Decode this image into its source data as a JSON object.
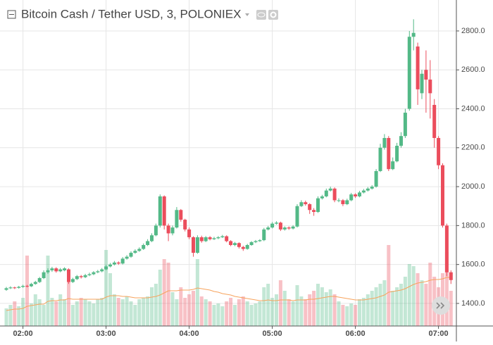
{
  "chart_data": {
    "type": "candlestick",
    "title": "Bitcoin Cash / Tether USD, 3, POLONIEX",
    "categories": [
      "01:48",
      "01:51",
      "01:54",
      "01:57",
      "02:00",
      "02:03",
      "02:06",
      "02:09",
      "02:12",
      "02:15",
      "02:18",
      "02:21",
      "02:24",
      "02:27",
      "02:30",
      "02:33",
      "02:36",
      "02:39",
      "02:42",
      "02:45",
      "02:48",
      "02:51",
      "02:54",
      "02:57",
      "03:00",
      "03:03",
      "03:06",
      "03:09",
      "03:12",
      "03:15",
      "03:18",
      "03:21",
      "03:24",
      "03:27",
      "03:30",
      "03:33",
      "03:36",
      "03:39",
      "03:42",
      "03:45",
      "03:48",
      "03:51",
      "03:54",
      "03:57",
      "04:00",
      "04:03",
      "04:06",
      "04:09",
      "04:12",
      "04:15",
      "04:18",
      "04:21",
      "04:24",
      "04:27",
      "04:30",
      "04:33",
      "04:36",
      "04:39",
      "04:42",
      "04:45",
      "04:48",
      "04:51",
      "04:54",
      "04:57",
      "05:00",
      "05:03",
      "05:06",
      "05:09",
      "05:12",
      "05:15",
      "05:18",
      "05:21",
      "05:24",
      "05:27",
      "05:30",
      "05:33",
      "05:36",
      "05:39",
      "05:42",
      "05:45",
      "05:48",
      "05:51",
      "05:54",
      "05:57",
      "06:00",
      "06:03",
      "06:06",
      "06:09",
      "06:12",
      "06:15",
      "06:18",
      "06:21",
      "06:24",
      "06:27",
      "06:30",
      "06:33",
      "06:36",
      "06:39",
      "06:42",
      "06:45",
      "06:48",
      "06:51",
      "06:54",
      "06:57",
      "07:00",
      "07:03",
      "07:06",
      "07:09"
    ],
    "open": [
      1470,
      1478,
      1482,
      1480,
      1485,
      1490,
      1488,
      1500,
      1510,
      1530,
      1560,
      1570,
      1580,
      1565,
      1570,
      1575,
      1510,
      1525,
      1540,
      1535,
      1545,
      1550,
      1560,
      1565,
      1575,
      1590,
      1600,
      1610,
      1605,
      1630,
      1640,
      1660,
      1670,
      1680,
      1700,
      1720,
      1750,
      1800,
      1950,
      1800,
      1760,
      1790,
      1880,
      1830,
      1780,
      1740,
      1660,
      1740,
      1720,
      1740,
      1730,
      1735,
      1740,
      1745,
      1720,
      1700,
      1710,
      1690,
      1680,
      1700,
      1715,
      1720,
      1725,
      1780,
      1790,
      1810,
      1815,
      1780,
      1790,
      1785,
      1795,
      1900,
      1920,
      1910,
      1880,
      1870,
      1940,
      1950,
      1980,
      1990,
      1930,
      1930,
      1910,
      1930,
      1960,
      1950,
      1970,
      1980,
      1990,
      2000,
      2080,
      2200,
      2250,
      2090,
      2130,
      2210,
      2260,
      2400,
      2770,
      2720,
      2480,
      2600,
      2550,
      2420,
      2250,
      2110,
      1800,
      1560
    ],
    "high": [
      1485,
      1488,
      1486,
      1490,
      1496,
      1495,
      1506,
      1516,
      1536,
      1570,
      1580,
      1588,
      1586,
      1582,
      1586,
      1580,
      1532,
      1546,
      1546,
      1552,
      1558,
      1566,
      1572,
      1582,
      1598,
      1608,
      1618,
      1616,
      1638,
      1648,
      1668,
      1678,
      1688,
      1708,
      1730,
      1760,
      1810,
      1960,
      1955,
      1810,
      1800,
      1895,
      1885,
      1835,
      1790,
      1745,
      1750,
      1748,
      1746,
      1746,
      1742,
      1746,
      1752,
      1750,
      1725,
      1716,
      1714,
      1696,
      1706,
      1720,
      1726,
      1730,
      1788,
      1798,
      1818,
      1822,
      1820,
      1796,
      1796,
      1802,
      1910,
      1930,
      1928,
      1915,
      1890,
      1950,
      1958,
      1990,
      2000,
      1996,
      1940,
      1936,
      1938,
      1968,
      1966,
      1978,
      1988,
      1998,
      2008,
      2090,
      2220,
      2270,
      2260,
      2150,
      2225,
      2280,
      2400,
      2800,
      2860,
      2740,
      2600,
      2700,
      2650,
      2450,
      2260,
      2120,
      1810,
      1570
    ],
    "low": [
      1465,
      1474,
      1474,
      1476,
      1480,
      1482,
      1484,
      1496,
      1505,
      1525,
      1552,
      1562,
      1558,
      1560,
      1565,
      1500,
      1505,
      1520,
      1528,
      1530,
      1540,
      1545,
      1555,
      1560,
      1570,
      1585,
      1595,
      1598,
      1600,
      1625,
      1635,
      1655,
      1665,
      1675,
      1695,
      1715,
      1745,
      1790,
      1780,
      1720,
      1750,
      1785,
      1820,
      1770,
      1730,
      1640,
      1655,
      1712,
      1715,
      1724,
      1726,
      1730,
      1736,
      1714,
      1694,
      1694,
      1682,
      1670,
      1676,
      1696,
      1710,
      1716,
      1720,
      1775,
      1785,
      1805,
      1772,
      1774,
      1778,
      1780,
      1790,
      1895,
      1902,
      1860,
      1850,
      1865,
      1934,
      1945,
      1975,
      1920,
      1920,
      1900,
      1905,
      1925,
      1942,
      1945,
      1965,
      1975,
      1985,
      1995,
      2075,
      2190,
      2080,
      2085,
      2125,
      2200,
      2250,
      2390,
      2700,
      2420,
      2450,
      2380,
      2350,
      2200,
      2090,
      1790,
      1540,
      1500
    ],
    "close": [
      1478,
      1482,
      1480,
      1485,
      1490,
      1488,
      1500,
      1510,
      1530,
      1560,
      1570,
      1580,
      1565,
      1575,
      1580,
      1510,
      1525,
      1540,
      1535,
      1545,
      1550,
      1560,
      1565,
      1575,
      1590,
      1600,
      1610,
      1605,
      1630,
      1640,
      1660,
      1670,
      1680,
      1700,
      1720,
      1750,
      1800,
      1950,
      1800,
      1760,
      1790,
      1880,
      1830,
      1780,
      1740,
      1660,
      1740,
      1720,
      1740,
      1730,
      1735,
      1740,
      1745,
      1720,
      1700,
      1710,
      1690,
      1680,
      1700,
      1715,
      1720,
      1725,
      1780,
      1790,
      1810,
      1815,
      1780,
      1790,
      1785,
      1795,
      1900,
      1920,
      1910,
      1880,
      1870,
      1940,
      1950,
      1980,
      1990,
      1930,
      1930,
      1910,
      1930,
      1960,
      1950,
      1970,
      1980,
      1990,
      2000,
      2080,
      2200,
      2250,
      2090,
      2130,
      2210,
      2260,
      2380,
      2770,
      2790,
      2500,
      2580,
      2550,
      2480,
      2250,
      2110,
      1800,
      1560,
      1520
    ],
    "volume": [
      25,
      30,
      35,
      28,
      40,
      100,
      32,
      45,
      38,
      30,
      100,
      40,
      35,
      45,
      38,
      70,
      30,
      35,
      40,
      38,
      35,
      32,
      38,
      40,
      108,
      75,
      45,
      40,
      38,
      42,
      35,
      30,
      38,
      40,
      42,
      55,
      60,
      80,
      95,
      90,
      48,
      38,
      55,
      40,
      45,
      50,
      95,
      42,
      38,
      35,
      30,
      32,
      28,
      35,
      40,
      30,
      38,
      42,
      35,
      30,
      32,
      35,
      55,
      60,
      40,
      45,
      65,
      50,
      38,
      35,
      58,
      42,
      38,
      45,
      50,
      60,
      55,
      48,
      52,
      45,
      35,
      30,
      28,
      32,
      30,
      38,
      40,
      45,
      50,
      55,
      60,
      65,
      115,
      50,
      55,
      60,
      70,
      88,
      85,
      75,
      65,
      60,
      90,
      70,
      55,
      75,
      105,
      50
    ],
    "volume_ma": [
      22,
      23,
      24,
      24,
      25,
      28,
      29,
      30,
      31,
      31,
      35,
      36,
      36,
      37,
      37,
      39,
      38,
      38,
      38,
      38,
      38,
      38,
      38,
      38,
      41,
      43,
      43,
      43,
      42,
      42,
      41,
      40,
      40,
      40,
      40,
      41,
      42,
      44,
      47,
      50,
      50,
      50,
      51,
      51,
      51,
      52,
      54,
      53,
      52,
      51,
      49,
      48,
      46,
      45,
      44,
      42,
      41,
      40,
      39,
      38,
      37,
      36,
      36,
      37,
      36,
      36,
      37,
      37,
      37,
      36,
      37,
      37,
      37,
      38,
      38,
      39,
      40,
      41,
      42,
      42,
      41,
      40,
      39,
      38,
      37,
      37,
      37,
      38,
      39,
      40,
      42,
      44,
      48,
      49,
      50,
      51,
      53,
      56,
      59,
      61,
      62,
      63,
      65,
      66,
      66,
      67,
      69,
      69
    ],
    "up_color": "#53b987",
    "down_color": "#eb4d5c",
    "ma_color": "#f7a35c",
    "ylim": [
      1284,
      2959
    ],
    "yticks": [
      {
        "value": 1400,
        "label": "1400.0"
      },
      {
        "value": 1600,
        "label": "1600.0"
      },
      {
        "value": 1800,
        "label": "1800.0"
      },
      {
        "value": 2000,
        "label": "2000.0"
      },
      {
        "value": 2200,
        "label": "2200.0"
      },
      {
        "value": 2400,
        "label": "2400.0"
      },
      {
        "value": 2600,
        "label": "2600.0"
      },
      {
        "value": 2800,
        "label": "2800.0"
      }
    ],
    "volume_ylim": [
      0,
      463
    ],
    "xticks": [
      "02:00",
      "03:00",
      "04:00",
      "05:00",
      "06:00",
      "07:00"
    ],
    "grid": true
  }
}
